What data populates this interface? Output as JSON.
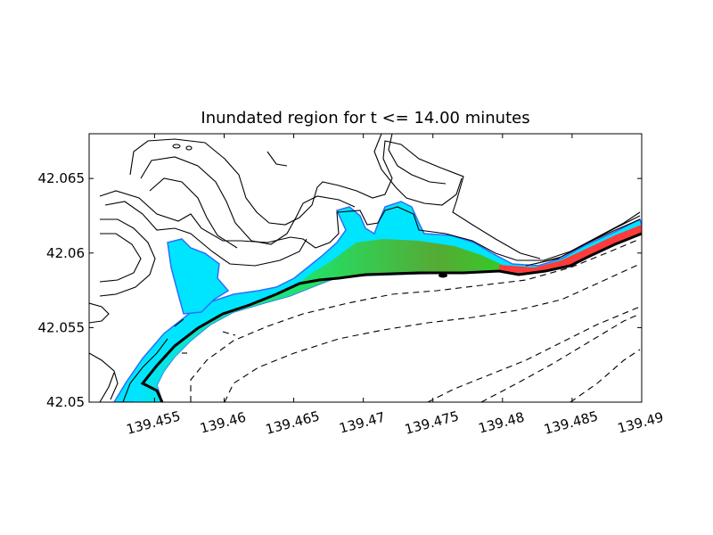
{
  "chart_data": {
    "type": "heatmap",
    "title": "Inundated region for t <= 14.00 minutes",
    "xlabel": "",
    "ylabel": "",
    "xlim": [
      139.4503,
      139.49
    ],
    "ylim": [
      42.05,
      42.068
    ],
    "x_ticks": [
      139.455,
      139.46,
      139.465,
      139.47,
      139.475,
      139.48,
      139.485,
      139.49
    ],
    "x_tick_labels": [
      "139.455",
      "139.46",
      "139.465",
      "139.47",
      "139.475",
      "139.48",
      "139.485",
      "139.49"
    ],
    "y_ticks": [
      42.05,
      42.055,
      42.06,
      42.065
    ],
    "y_tick_labels": [
      "42.05",
      "42.055",
      "42.06",
      "42.065"
    ],
    "colormap": [
      "#3b6cff",
      "#00e5ff",
      "#22dd22",
      "#55aa33",
      "#ff3b3b"
    ],
    "land_contour_color": "#000000",
    "bathymetry_contour_style": "dashed",
    "shoreline_color": "#000000",
    "grid": false,
    "legend": "none"
  }
}
